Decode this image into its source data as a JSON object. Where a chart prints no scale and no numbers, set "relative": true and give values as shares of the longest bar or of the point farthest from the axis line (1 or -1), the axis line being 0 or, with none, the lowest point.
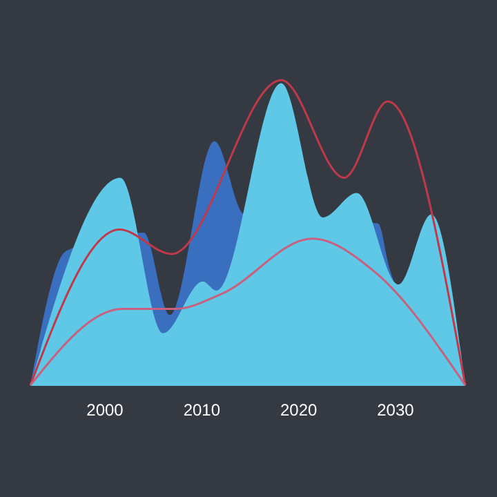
{
  "chart_data": {
    "type": "area",
    "relative": true,
    "xlim": [
      1992.3,
      2037.2
    ],
    "xticks": [
      2000,
      2010,
      2020,
      2030
    ],
    "tick_labels": "x",
    "series": [
      {
        "color": "#3a6fc0",
        "x": [
          1992.3,
          1996,
          2004,
          2006.7,
          2011.3,
          2014.4,
          2028.2,
          2029.4,
          2037.2
        ],
        "values": [
          0,
          0.44,
          0.5,
          0.23,
          0.8,
          0.56,
          0.53,
          0.38,
          0
        ]
      },
      {
        "color": "#5ec8e6",
        "x": [
          1992.3,
          2001.6,
          2006,
          2010.1,
          2011.5,
          2018.2,
          2022.5,
          2026,
          2030.3,
          2033.7,
          2037.2
        ],
        "values": [
          0,
          0.68,
          0.17,
          0.34,
          0.31,
          0.99,
          0.55,
          0.63,
          0.33,
          0.56,
          0
        ]
      },
      {
        "type": "line",
        "color": "#c0394b",
        "x": [
          1992.3,
          2001.5,
          2006.9,
          2018.2,
          2024.7,
          2029.2,
          2037.2
        ],
        "values": [
          0,
          0.51,
          0.43,
          1,
          0.68,
          0.93,
          0
        ]
      },
      {
        "type": "line",
        "color": "#c8607e",
        "x": [
          1992.3,
          2001.8,
          2007.3,
          2012.1,
          2021.4,
          2027.9,
          2037.2
        ],
        "values": [
          0,
          0.25,
          0.25,
          0.3,
          0.48,
          0.37,
          0
        ]
      }
    ]
  }
}
